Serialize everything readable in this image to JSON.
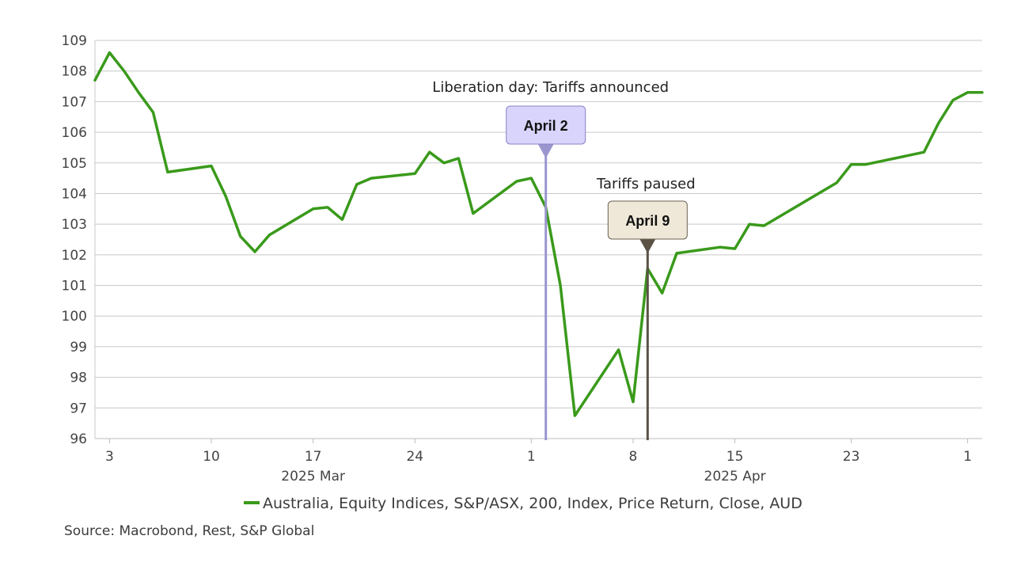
{
  "chart_data": {
    "type": "line",
    "title": "",
    "xlabel": "",
    "ylabel": "",
    "ylim": [
      96,
      109
    ],
    "yticks": [
      96,
      97,
      98,
      99,
      100,
      101,
      102,
      103,
      104,
      105,
      106,
      107,
      108,
      109
    ],
    "xlim": [
      "2025-03-02",
      "2025-05-02"
    ],
    "xticks": [
      {
        "date": "2025-03-03",
        "label": "3"
      },
      {
        "date": "2025-03-10",
        "label": "10"
      },
      {
        "date": "2025-03-17",
        "label": "17"
      },
      {
        "date": "2025-03-24",
        "label": "24"
      },
      {
        "date": "2025-04-01",
        "label": "1"
      },
      {
        "date": "2025-04-08",
        "label": "8"
      },
      {
        "date": "2025-04-15",
        "label": "15"
      },
      {
        "date": "2025-04-23",
        "label": "23"
      },
      {
        "date": "2025-05-01",
        "label": "1"
      }
    ],
    "month_labels": [
      {
        "date": "2025-03-17",
        "label": "2025 Mar"
      },
      {
        "date": "2025-04-15",
        "label": "2025 Apr"
      }
    ],
    "grid": true,
    "legend_position": "bottom",
    "series": [
      {
        "name": "Australia, Equity Indices, S&P/ASX, 200, Index, Price Return, Close, AUD",
        "color": "#3a9a1b",
        "x": [
          "2025-03-02",
          "2025-03-03",
          "2025-03-04",
          "2025-03-05",
          "2025-03-06",
          "2025-03-07",
          "2025-03-10",
          "2025-03-11",
          "2025-03-12",
          "2025-03-13",
          "2025-03-14",
          "2025-03-17",
          "2025-03-18",
          "2025-03-19",
          "2025-03-20",
          "2025-03-21",
          "2025-03-24",
          "2025-03-25",
          "2025-03-26",
          "2025-03-27",
          "2025-03-28",
          "2025-03-31",
          "2025-04-01",
          "2025-04-02",
          "2025-04-03",
          "2025-04-04",
          "2025-04-07",
          "2025-04-08",
          "2025-04-09",
          "2025-04-10",
          "2025-04-11",
          "2025-04-14",
          "2025-04-15",
          "2025-04-16",
          "2025-04-17",
          "2025-04-22",
          "2025-04-23",
          "2025-04-24",
          "2025-04-28",
          "2025-04-29",
          "2025-04-30",
          "2025-05-01",
          "2025-05-02"
        ],
        "values": [
          107.7,
          108.6,
          108.0,
          107.3,
          106.65,
          104.7,
          104.9,
          103.9,
          102.6,
          102.1,
          102.65,
          103.5,
          103.55,
          103.15,
          104.3,
          104.5,
          104.65,
          105.35,
          105.0,
          105.15,
          103.35,
          104.4,
          104.5,
          103.55,
          101.0,
          96.75,
          98.9,
          97.2,
          101.55,
          100.75,
          102.05,
          102.25,
          102.2,
          103.0,
          102.95,
          104.35,
          104.95,
          104.95,
          105.35,
          106.3,
          107.05,
          107.3,
          107.3
        ]
      }
    ],
    "annotations": [
      {
        "date": "2025-04-02",
        "label": "April 2",
        "caption": "Liberation day: Tariffs announced",
        "box_fill": "#d8d4fb",
        "box_stroke": "#8a82c8",
        "line_color": "#9b95cf"
      },
      {
        "date": "2025-04-09",
        "label": "April 9",
        "caption": "Tariffs paused",
        "box_fill": "#efe8d8",
        "box_stroke": "#6b6152",
        "line_color": "#5a5245"
      }
    ]
  },
  "legend": {
    "label": "Australia, Equity Indices, S&P/ASX, 200, Index, Price Return, Close, AUD"
  },
  "footer": {
    "source": "Source: Macrobond, Rest, S&P Global"
  }
}
